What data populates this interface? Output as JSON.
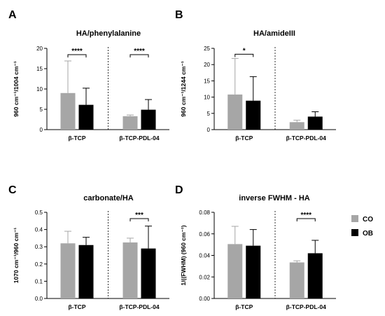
{
  "colors": {
    "CO": "#a6a6a6",
    "OB": "#000000"
  },
  "legend": {
    "placement": "right",
    "items": [
      {
        "label": "CO",
        "color": "#a6a6a6"
      },
      {
        "label": "OB",
        "color": "#000000"
      }
    ]
  },
  "chart_data": [
    {
      "type": "bar",
      "panel": "A",
      "title": "HA/phenylalanine",
      "ylabel": "960 cm⁻¹/1004 cm⁻¹",
      "xlabel": "",
      "ylim": [
        0,
        20
      ],
      "yticks": [
        "0",
        "5",
        "10",
        "15",
        "20"
      ],
      "categories": [
        "β-TCP",
        "β-TCP-PDL-04"
      ],
      "series": [
        {
          "name": "CO",
          "values": [
            9.0,
            3.3
          ],
          "errors": [
            7.9,
            0.3
          ]
        },
        {
          "name": "OB",
          "values": [
            6.1,
            4.9
          ],
          "errors": [
            4.1,
            2.5
          ]
        }
      ],
      "significance": [
        "****",
        "****"
      ]
    },
    {
      "type": "bar",
      "panel": "B",
      "title": "HA/amideIII",
      "ylabel": "960 cm⁻¹/1244 cm⁻¹",
      "xlabel": "",
      "ylim": [
        0,
        25
      ],
      "yticks": [
        "0",
        "5",
        "10",
        "15",
        "20",
        "25"
      ],
      "categories": [
        "β-TCP",
        "β-TCP-PDL-04"
      ],
      "series": [
        {
          "name": "CO",
          "values": [
            10.8,
            2.3
          ],
          "errors": [
            11.1,
            0.6
          ]
        },
        {
          "name": "OB",
          "values": [
            8.9,
            4.0
          ],
          "errors": [
            7.4,
            1.5
          ]
        }
      ],
      "significance": [
        "*",
        ""
      ]
    },
    {
      "type": "bar",
      "panel": "C",
      "title": "carbonate/HA",
      "ylabel": "1070 cm⁻¹/960 cm⁻¹",
      "xlabel": "",
      "ylim": [
        0,
        0.5
      ],
      "yticks": [
        "0.0",
        "0.1",
        "0.2",
        "0.3",
        "0.4",
        "0.5"
      ],
      "categories": [
        "β-TCP",
        "β-TCP-PDL-04"
      ],
      "series": [
        {
          "name": "CO",
          "values": [
            0.32,
            0.325
          ],
          "errors": [
            0.07,
            0.025
          ]
        },
        {
          "name": "OB",
          "values": [
            0.31,
            0.29
          ],
          "errors": [
            0.045,
            0.13
          ]
        }
      ],
      "significance": [
        "",
        "***"
      ]
    },
    {
      "type": "bar",
      "panel": "D",
      "title": "inverse FWHM - HA",
      "ylabel": "1/((FWHM) (960 cm⁻¹)",
      "xlabel": "",
      "ylim": [
        0,
        0.08
      ],
      "yticks": [
        "0.00",
        "0.02",
        "0.04",
        "0.06",
        "0.08"
      ],
      "categories": [
        "β-TCP",
        "β-TCP-PDL-04"
      ],
      "series": [
        {
          "name": "CO",
          "values": [
            0.0505,
            0.0335
          ],
          "errors": [
            0.0165,
            0.0015
          ]
        },
        {
          "name": "OB",
          "values": [
            0.049,
            0.042
          ],
          "errors": [
            0.015,
            0.012
          ]
        }
      ],
      "significance": [
        "",
        "****"
      ]
    }
  ]
}
